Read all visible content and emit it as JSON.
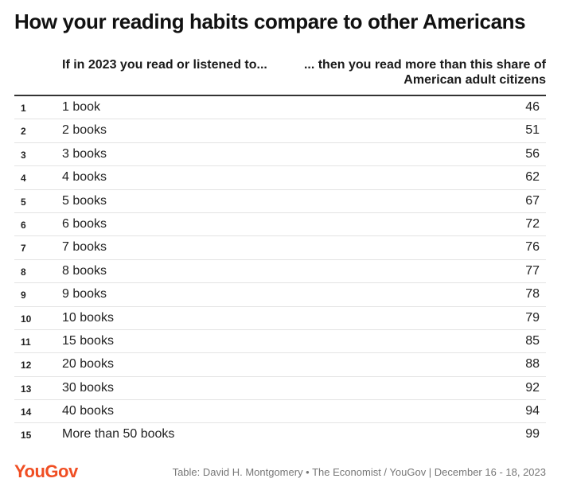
{
  "title": "How your reading habits compare to other Americans",
  "table": {
    "col_left_header": "If in 2023 you read or listened to...",
    "col_right_header": "... then you read more than this share of American adult citizens"
  },
  "chart_data": {
    "type": "table",
    "title": "How your reading habits compare to other Americans",
    "columns": [
      "",
      "If in 2023 you read or listened to...",
      "... then you read more than this share of American adult citizens"
    ],
    "rows": [
      {
        "rank": "1",
        "books": "1 book",
        "share": "46"
      },
      {
        "rank": "2",
        "books": "2 books",
        "share": "51"
      },
      {
        "rank": "3",
        "books": "3 books",
        "share": "56"
      },
      {
        "rank": "4",
        "books": "4 books",
        "share": "62"
      },
      {
        "rank": "5",
        "books": "5 books",
        "share": "67"
      },
      {
        "rank": "6",
        "books": "6 books",
        "share": "72"
      },
      {
        "rank": "7",
        "books": "7 books",
        "share": "76"
      },
      {
        "rank": "8",
        "books": "8 books",
        "share": "77"
      },
      {
        "rank": "9",
        "books": "9 books",
        "share": "78"
      },
      {
        "rank": "10",
        "books": "10 books",
        "share": "79"
      },
      {
        "rank": "11",
        "books": "15 books",
        "share": "85"
      },
      {
        "rank": "12",
        "books": "20 books",
        "share": "88"
      },
      {
        "rank": "13",
        "books": "30 books",
        "share": "92"
      },
      {
        "rank": "14",
        "books": "40 books",
        "share": "94"
      },
      {
        "rank": "15",
        "books": "More than 50 books",
        "share": "99"
      }
    ]
  },
  "footer": {
    "logo": "YouGov",
    "source": "Table: David H. Montgomery • The Economist / YouGov | December 16 - 18, 2023"
  },
  "colors": {
    "logo": "#f04e23",
    "rule": "#333333",
    "row_divider": "#e3e3e3"
  }
}
